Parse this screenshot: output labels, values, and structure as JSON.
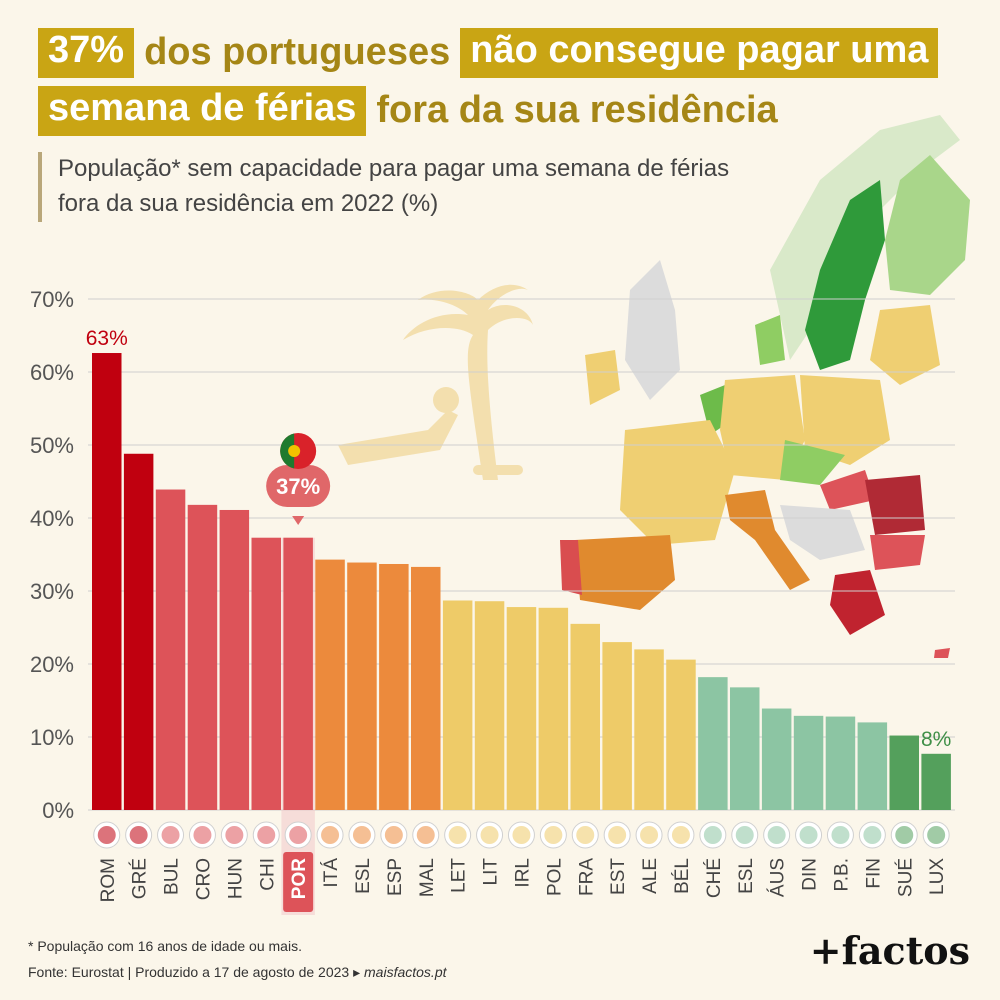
{
  "title": {
    "seg1": "37%",
    "seg2": "dos portugueses",
    "seg3": "não consegue pagar uma",
    "seg4": "semana de férias",
    "seg5": "fora da sua residência"
  },
  "subtitle_line1": "População* sem capacidade para pagar uma semana de férias",
  "subtitle_line2": "fora da sua residência em 2022 (%)",
  "footnote": "* População com 16 anos de idade ou mais.",
  "source": "Fonte: Eurostat | Produzido a 17 de agosto de 2023 ▸",
  "source_site": "maisfactos.pt",
  "brand": "+factos",
  "highlight": {
    "index": 6,
    "label": "37%"
  },
  "colors": {
    "dark_red": "#c0000f",
    "red": "#dd5359",
    "orange": "#ec8a3c",
    "yellow": "#eecb68",
    "light_green": "#8cc5a3",
    "dark_green": "#54a05c",
    "title_gold": "#c9a514"
  },
  "chart_data": {
    "type": "bar",
    "title": "População* sem capacidade para pagar uma semana de férias fora da sua residência em 2022 (%)",
    "categories": [
      "ROM",
      "GRÉ",
      "BUL",
      "CRO",
      "HUN",
      "CHI",
      "POR",
      "ITÁ",
      "ESL",
      "ESP",
      "MAL",
      "LET",
      "LIT",
      "IRL",
      "POL",
      "FRA",
      "EST",
      "ALE",
      "BÉL",
      "CHÉ",
      "ESL",
      "ÁUS",
      "DIN",
      "P.B.",
      "FIN",
      "SUÉ",
      "LUX"
    ],
    "values": [
      62.6,
      48.8,
      43.9,
      41.8,
      41.1,
      37.3,
      37.3,
      34.3,
      33.9,
      33.7,
      33.3,
      28.7,
      28.6,
      27.8,
      27.7,
      25.5,
      23.0,
      22.0,
      20.6,
      18.2,
      16.8,
      13.9,
      12.9,
      12.8,
      12.0,
      10.2,
      7.7
    ],
    "bar_colors": [
      "#c0000f",
      "#c0000f",
      "#dd5359",
      "#dd5359",
      "#dd5359",
      "#dd5359",
      "#dd5359",
      "#ec8a3c",
      "#ec8a3c",
      "#ec8a3c",
      "#ec8a3c",
      "#eecb68",
      "#eecb68",
      "#eecb68",
      "#eecb68",
      "#eecb68",
      "#eecb68",
      "#eecb68",
      "#eecb68",
      "#8cc5a3",
      "#8cc5a3",
      "#8cc5a3",
      "#8cc5a3",
      "#8cc5a3",
      "#8cc5a3",
      "#54a05c",
      "#54a05c"
    ],
    "data_labels": [
      {
        "index": 0,
        "text": "63%",
        "color": "#c0000f"
      },
      {
        "index": 26,
        "text": "8%",
        "color": "#3f8f47"
      }
    ],
    "ylim": [
      0,
      70
    ],
    "yticks": [
      0,
      10,
      20,
      30,
      40,
      50,
      60,
      70
    ],
    "ytick_labels": [
      "0%",
      "10%",
      "20%",
      "30%",
      "40%",
      "50%",
      "60%",
      "70%"
    ],
    "grid": true
  }
}
